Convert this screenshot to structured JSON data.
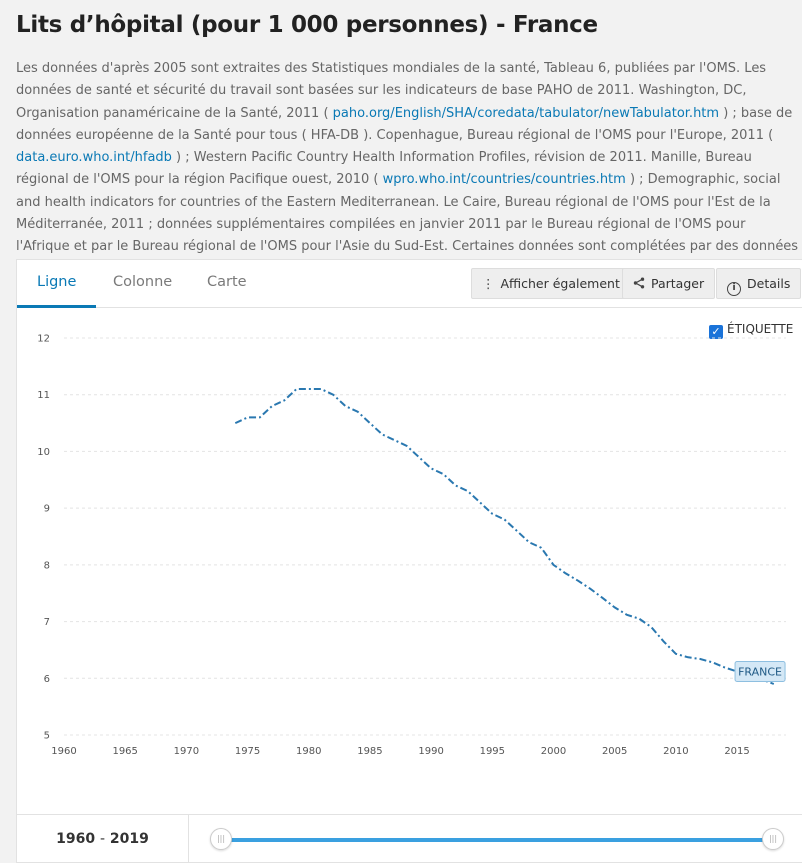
{
  "page": {
    "title": "Lits d’hôpital (pour 1 000 personnes) - France",
    "description": [
      {
        "text": "Les données d'après 2005 sont extraites des Statistiques mondiales de la santé, Tableau 6, publiées par l'OMS. Les données de santé et sécurité du travail sont basées sur les indicateurs de base PAHO de 2011. Washington, DC, Organisation panaméricaine de la Santé, 2011 ( "
      },
      {
        "link": "paho.org/English/SHA/coredata/tabulator/newTabulator.htm"
      },
      {
        "text": " ) ; base de données européenne de la Santé pour tous ( HFA-DB ). Copenhague, Bureau régional de l'OMS pour l'Europe, 2011 ( "
      },
      {
        "link": "data.euro.who.int/hfadb"
      },
      {
        "text": " ) ; Western Pacific Country Health Information Profiles, révision de 2011. Manille, Bureau régional de l'OMS pour la région Pacifique ouest, 2010 ( "
      },
      {
        "link": "wpro.who.int/countries/countries.htm"
      },
      {
        "text": " ) ; Demographic, social and health indicators for countries of the Eastern Mediterranean. Le Caire, Bureau régional de l'OMS pour l'Est de la Méditerranée, 2011 ; données supplémentaires compilées en janvier 2011 par le Bureau régional de l'OMS pour l'Afrique et par le Bureau régional de l'OMS pour l'Asie du Sud-Est. Certaines données sont complétées par des données nationales."
      }
    ]
  },
  "tabs": [
    {
      "label": "Ligne",
      "active": true
    },
    {
      "label": "Colonne",
      "active": false
    },
    {
      "label": "Carte",
      "active": false
    }
  ],
  "toolbar": {
    "show_also": "Afficher également",
    "share": "Partager",
    "details": "Details"
  },
  "label_toggle": {
    "label": "ÉTIQUETTE",
    "checked": true
  },
  "range": {
    "start": "1960",
    "sep": "-",
    "end": "2019"
  },
  "colors": {
    "accent": "#0a79b5",
    "line": "#2a78b0",
    "flag_bg": "#d4e8f6",
    "flag_border": "#8ebfe0"
  },
  "chart_data": {
    "type": "line",
    "title": "",
    "xlabel": "",
    "ylabel": "",
    "xlim": [
      1960,
      2019
    ],
    "ylim": [
      5,
      12
    ],
    "x_ticks": [
      1960,
      1965,
      1970,
      1975,
      1980,
      1985,
      1990,
      1995,
      2000,
      2005,
      2010,
      2015
    ],
    "y_ticks": [
      5,
      6,
      7,
      8,
      9,
      10,
      11,
      12
    ],
    "grid": true,
    "line_style": "dash-dot",
    "series": [
      {
        "name": "FRANCE",
        "x": [
          1974,
          1975,
          1976,
          1977,
          1978,
          1979,
          1980,
          1981,
          1982,
          1983,
          1984,
          1985,
          1986,
          1987,
          1988,
          1989,
          1990,
          1991,
          1992,
          1993,
          1994,
          1995,
          1996,
          1997,
          1998,
          1999,
          2000,
          2001,
          2002,
          2003,
          2004,
          2005,
          2006,
          2007,
          2008,
          2009,
          2010,
          2011,
          2012,
          2013,
          2014,
          2015,
          2016,
          2017,
          2018
        ],
        "values": [
          10.5,
          10.6,
          10.6,
          10.8,
          10.9,
          11.1,
          11.1,
          11.1,
          11.0,
          10.8,
          10.7,
          10.5,
          10.3,
          10.2,
          10.1,
          9.9,
          9.7,
          9.6,
          9.4,
          9.3,
          9.1,
          8.9,
          8.8,
          8.6,
          8.4,
          8.3,
          8.0,
          7.85,
          7.72,
          7.58,
          7.42,
          7.25,
          7.12,
          7.05,
          6.9,
          6.65,
          6.43,
          6.37,
          6.34,
          6.28,
          6.19,
          6.12,
          6.03,
          5.98,
          5.9
        ]
      }
    ]
  }
}
